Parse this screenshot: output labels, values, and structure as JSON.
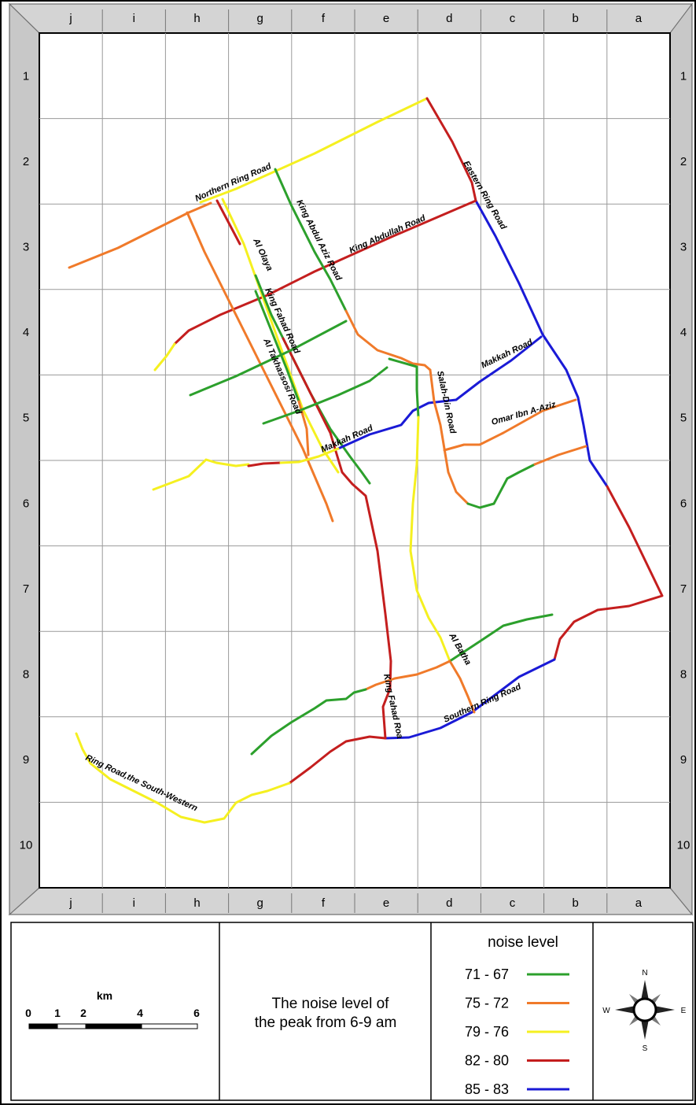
{
  "grid": {
    "cols": [
      "j",
      "i",
      "h",
      "g",
      "f",
      "e",
      "d",
      "c",
      "b",
      "a"
    ],
    "rows": [
      "1",
      "2",
      "3",
      "4",
      "5",
      "6",
      "7",
      "8",
      "9",
      "10"
    ]
  },
  "roads": {
    "northern_ring": "Northern Ring Road",
    "eastern_ring": "Eastern Ring Road",
    "king_abdullah": "King Abdullah Road",
    "king_abdul_aziz": "King Abdul Aziz Road",
    "al_olaya": "Al Olaya",
    "king_fahad_n": "King Fahad Road",
    "al_takhassosi": "Al Takhassosi Road",
    "makkah_e": "Makkah Road",
    "makkah_w": "Makkah Road",
    "salah_aldin": "Salah-Din Road",
    "omar": "Omar Ibn A-Aziz",
    "al_batha": "Al Batha",
    "king_fahad_s": "King Fahad Roa",
    "southern_ring": "Southern Ring Road",
    "southwestern_ring": "Ring Road,the South-Western"
  },
  "legend": {
    "title": "noise level",
    "items": [
      {
        "range": "71 - 67",
        "color": "#2ca02c"
      },
      {
        "range": "75 - 72",
        "color": "#f07a2a"
      },
      {
        "range": "79 - 76",
        "color": "#f5f020"
      },
      {
        "range": "82 - 80",
        "color": "#c41e1e"
      },
      {
        "range": "85 - 83",
        "color": "#1a1ad6"
      }
    ]
  },
  "caption": {
    "line1": "The noise level of",
    "line2": "the peak from 6-9 am"
  },
  "scale": {
    "unit": "km",
    "ticks": [
      "0",
      "1",
      "2",
      "4",
      "6"
    ]
  },
  "compass": {
    "n": "N",
    "s": "S",
    "e": "E",
    "w": "W"
  },
  "colors": {
    "green": "#2ca02c",
    "orange": "#f07a2a",
    "yellow": "#f5f020",
    "red": "#c41e1e",
    "blue": "#1a1ad6"
  }
}
